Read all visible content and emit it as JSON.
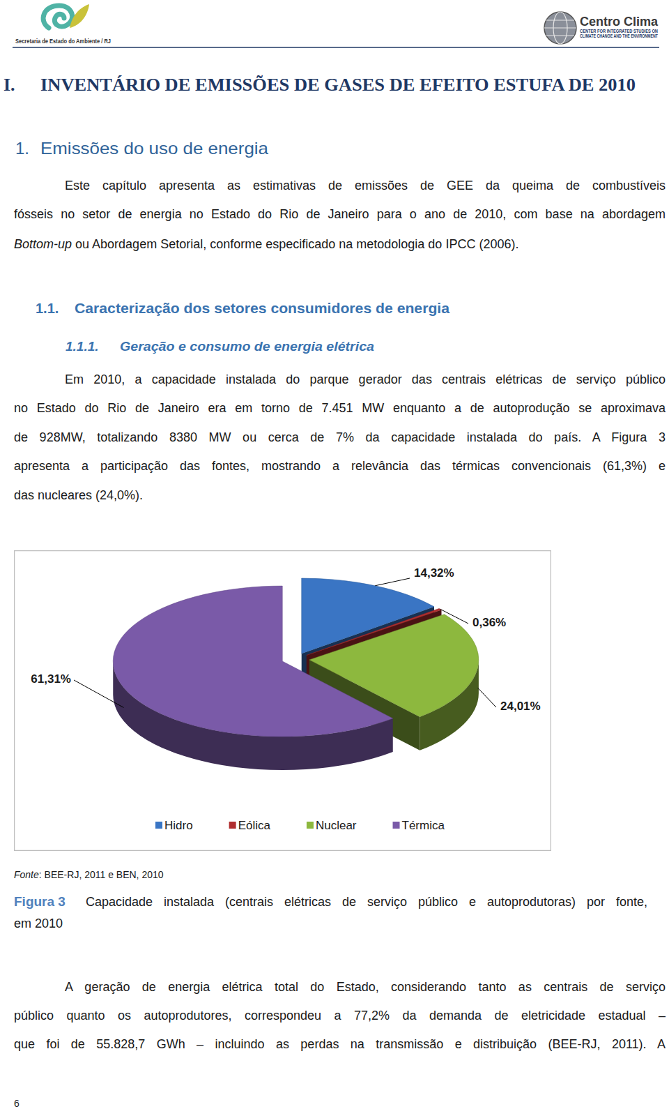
{
  "header": {
    "left_org": "Secretaria de Estado do Ambiente / RJ",
    "right_org": "Centro Clima",
    "right_tagline": [
      "CENTER FOR INTEGRATED STUDIES ON",
      "CLIMATE CHANGE AND THE ENVIRONMENT"
    ]
  },
  "title": {
    "number": "I.",
    "text": "INVENTÁRIO DE EMISSÕES DE GASES DE EFEITO ESTUFA DE 2010"
  },
  "section": {
    "number": "1.",
    "text": "Emissões do uso de energia"
  },
  "intro": {
    "lines": [
      "Este capítulo apresenta as estimativas de emissões de GEE da queima de combustíveis",
      "fósseis no setor de energia no Estado do Rio de Janeiro para o ano de 2010, com base na abordagem",
      [
        {
          "text": "Bottom-up",
          "italic": true
        },
        {
          "text": " ou Abordagem Setorial, conforme especificado na metodologia do IPCC (2006)."
        }
      ]
    ]
  },
  "subsection": {
    "number": "1.1.",
    "text": "Caracterização dos setores consumidores de energia"
  },
  "subsubsection": {
    "number": "1.1.1.",
    "text": "Geração e consumo de energia elétrica"
  },
  "paragraph": {
    "lines": [
      "Em 2010, a capacidade instalada do parque gerador das centrais elétricas de serviço público",
      "no Estado do Rio de Janeiro era em torno de 7.451 MW enquanto a de autoprodução se aproximava",
      "de 928MW, totalizando 8380 MW ou cerca de 7% da capacidade instalada do país. A Figura 3",
      "apresenta a participação das fontes, mostrando a relevância das térmicas convencionais (61,3%) e",
      "das nucleares (24,0%)."
    ]
  },
  "chart_data": {
    "type": "pie",
    "categories": [
      "Hidro",
      "Eólica",
      "Nuclear",
      "Térmica"
    ],
    "values": [
      14.32,
      0.36,
      24.01,
      61.31
    ],
    "value_labels": [
      "14,32%",
      "0,36%",
      "24,01%",
      "61,31%"
    ],
    "colors": [
      "#3A75C4",
      "#B02E2E",
      "#8DB83E",
      "#7A5AA8"
    ],
    "data_labels": true,
    "legend": "bottom"
  },
  "source": {
    "label": "Fonte",
    "text": ": BEE-RJ, 2011 e BEN, 2010"
  },
  "caption": {
    "label": "Figura 3",
    "lines": [
      "Capacidade instalada (centrais elétricas de serviço público e autoprodutoras) por fonte,",
      "em 2010"
    ]
  },
  "closing": {
    "lines": [
      "A geração de energia elétrica total do Estado, considerando tanto as centrais de serviço",
      "público quanto os autoprodutores, correspondeu a 77,2% da demanda de eletricidade estadual –",
      "que foi de 55.828,7 GWh – incluindo as perdas na transmissão e distribuição (BEE-RJ, 2011). A"
    ]
  },
  "page_number": "6"
}
